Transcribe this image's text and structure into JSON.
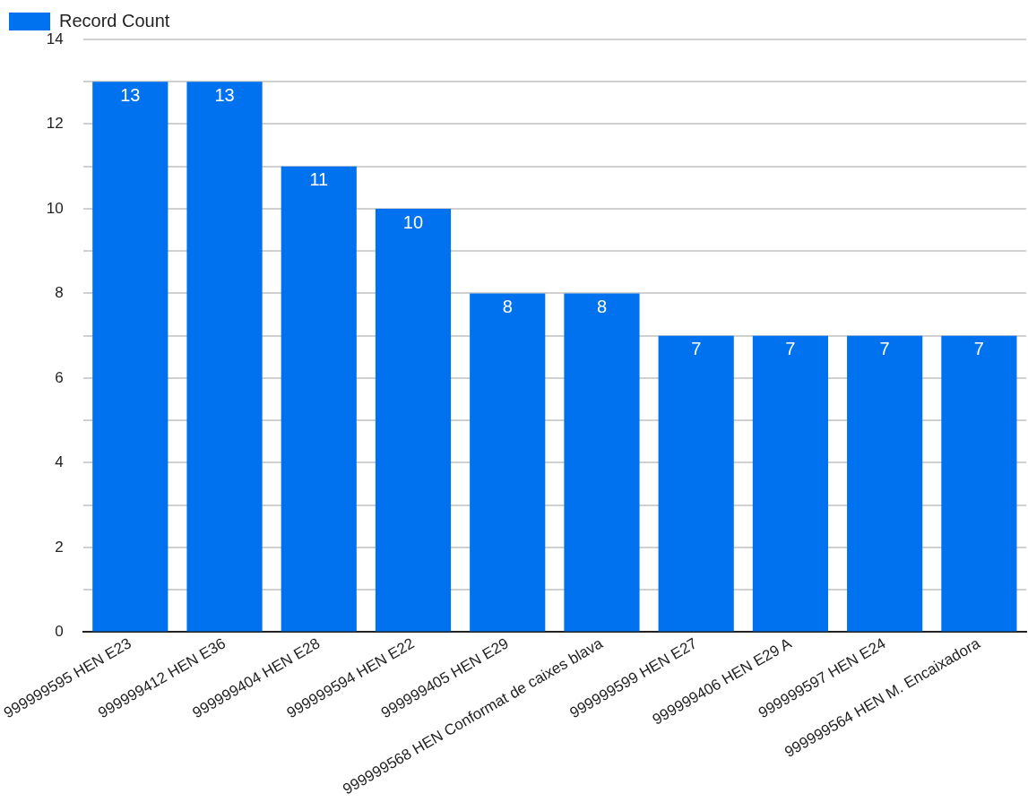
{
  "chart_data": {
    "type": "bar",
    "categories": [
      "999999595 HEN E23",
      "999999412 HEN E36",
      "999999404 HEN E28",
      "999999594 HEN E22",
      "999999405 HEN E29",
      "999999568 HEN Conformat de caixes blava",
      "999999599 HEN E27",
      "999999406 HEN E29 A",
      "999999597 HEN E24",
      "999999564 HEN M. Encaixadora"
    ],
    "series": [
      {
        "name": "Record Count",
        "color": "#0072ef",
        "values": [
          13,
          13,
          11,
          10,
          8,
          8,
          7,
          7,
          7,
          7
        ]
      }
    ],
    "ylim": [
      0,
      14
    ],
    "yticks": [
      0,
      {
        "value": 1,
        "label": null
      },
      2,
      {
        "value": 3,
        "label": null
      },
      4,
      {
        "value": 5,
        "label": null
      },
      6,
      {
        "value": 7,
        "label": null
      },
      8,
      {
        "value": 9,
        "label": null
      },
      10,
      {
        "value": 11,
        "label": null
      },
      12,
      {
        "value": 13,
        "label": null
      },
      14
    ],
    "grid": "y",
    "legend": "top left",
    "data_labels": true
  }
}
